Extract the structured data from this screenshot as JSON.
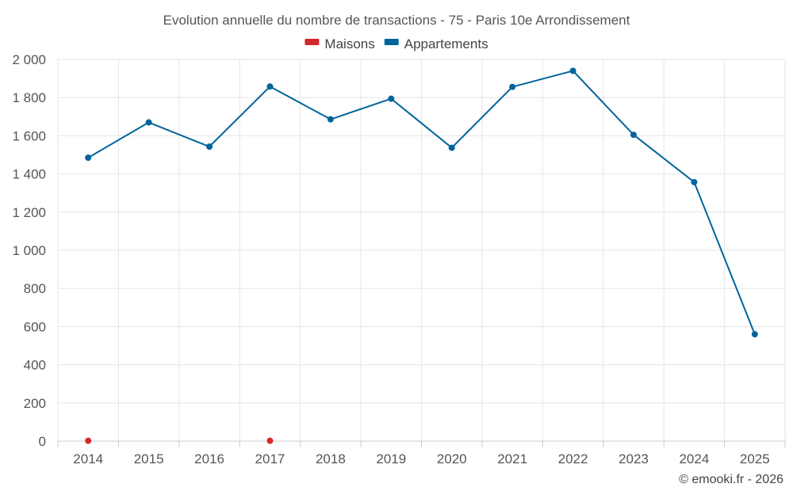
{
  "chart_data": {
    "type": "line",
    "title": "Evolution annuelle du nombre de transactions - 75 - Paris 10e Arrondissement",
    "categories": [
      "2014",
      "2015",
      "2016",
      "2017",
      "2018",
      "2019",
      "2020",
      "2021",
      "2022",
      "2023",
      "2024",
      "2025"
    ],
    "series": [
      {
        "name": "Maisons",
        "color": "#d62728",
        "values": [
          2,
          null,
          null,
          2,
          null,
          null,
          null,
          null,
          null,
          null,
          null,
          null
        ]
      },
      {
        "name": "Appartements",
        "color": "#00649b",
        "values": [
          1485,
          1670,
          1543,
          1858,
          1686,
          1794,
          1537,
          1856,
          1940,
          1605,
          1357,
          560
        ]
      }
    ],
    "ylim": [
      0,
      2000
    ],
    "yticks": [
      0,
      200,
      400,
      600,
      800,
      1000,
      1200,
      1400,
      1600,
      1800,
      2000
    ],
    "ytick_labels": [
      "0",
      "200",
      "400",
      "600",
      "800",
      "1 000",
      "1 200",
      "1 400",
      "1 600",
      "1 800",
      "2 000"
    ],
    "legend_position": "top-center",
    "grid": true
  },
  "credit": "© emooki.fr - 2026"
}
